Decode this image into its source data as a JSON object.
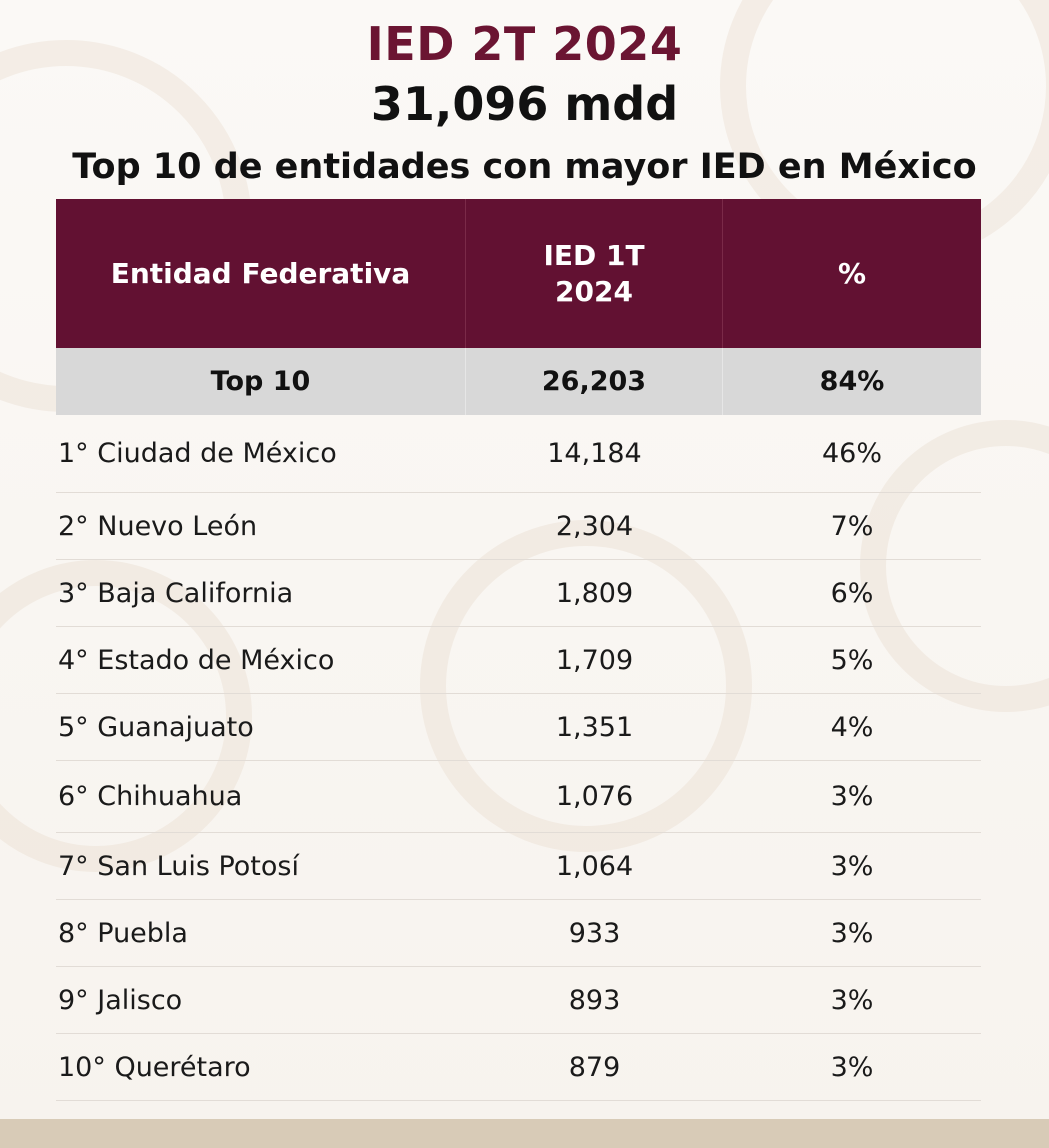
{
  "header": {
    "title": "IED 2T 2024",
    "amount": "31,096 mdd",
    "subtitle": "Top 10 de entidades con mayor IED en México"
  },
  "colors": {
    "accent": "#621132",
    "title": "#6b1532",
    "total_row_bg": "#d8d8d8",
    "background": "#f5f1ec"
  },
  "table": {
    "columns": [
      "Entidad Federativa",
      "IED 1T\n2024",
      "%"
    ],
    "column_col2_line1": "IED 1T",
    "column_col2_line2": "2024",
    "total": {
      "label": "Top 10",
      "value": "26,203",
      "percent": "84%"
    },
    "rows": [
      {
        "entity": "1° Ciudad de México",
        "value": "14,184",
        "percent": "46%"
      },
      {
        "entity": "2° Nuevo León",
        "value": "2,304",
        "percent": "7%"
      },
      {
        "entity": "3° Baja California",
        "value": "1,809",
        "percent": "6%"
      },
      {
        "entity": "4° Estado de México",
        "value": "1,709",
        "percent": "5%"
      },
      {
        "entity": "5° Guanajuato",
        "value": "1,351",
        "percent": "4%"
      },
      {
        "entity": "6° Chihuahua",
        "value": "1,076",
        "percent": "3%"
      },
      {
        "entity": "7° San Luis Potosí",
        "value": "1,064",
        "percent": "3%"
      },
      {
        "entity": "8° Puebla",
        "value": "933",
        "percent": "3%"
      },
      {
        "entity": "9° Jalisco",
        "value": "893",
        "percent": "3%"
      },
      {
        "entity": "10° Querétaro",
        "value": "879",
        "percent": "3%"
      }
    ]
  }
}
